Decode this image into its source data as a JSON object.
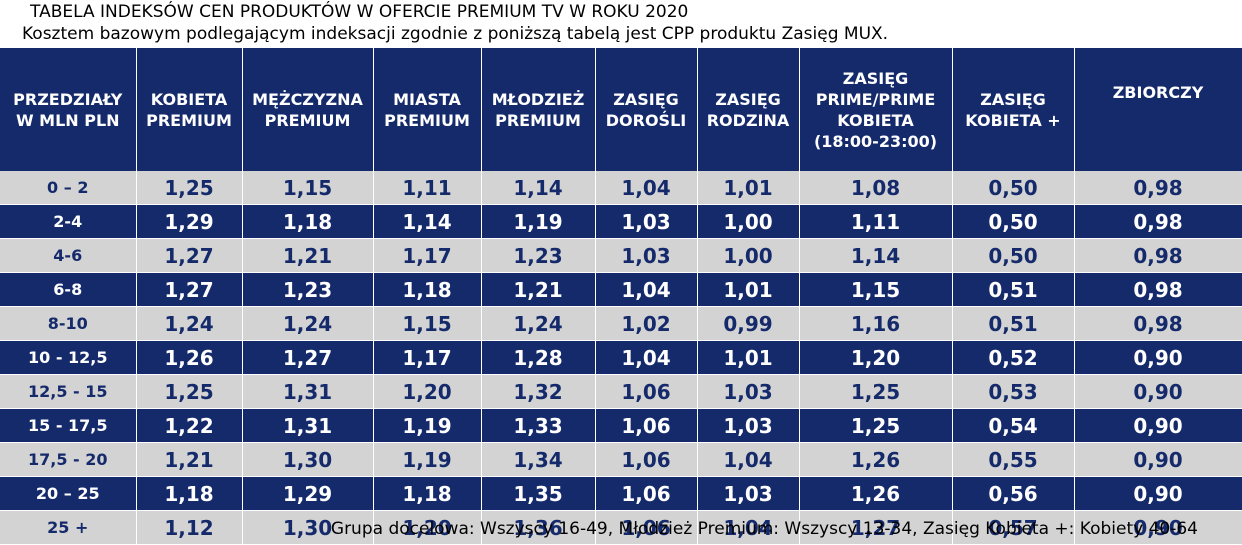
{
  "title": "TABELA INDEKSÓW CEN PRODUKTÓW W OFERCIE PREMIUM TV W ROKU 2020",
  "subtitle": "Kosztem bazowym podlegającym indeksacji zgodnie z poniższą tabelą jest CPP produktu Zasięg MUX.",
  "table": {
    "headers": [
      [
        "PRZEDZIAŁY",
        "W MLN PLN"
      ],
      [
        "KOBIETA",
        "PREMIUM"
      ],
      [
        "MĘŻCZYZNA",
        "PREMIUM"
      ],
      [
        "MIASTA",
        "PREMIUM"
      ],
      [
        "MŁODZIEŻ",
        "PREMIUM"
      ],
      [
        "ZASIĘG",
        "DOROŚLI"
      ],
      [
        "ZASIĘG",
        "RODZINA"
      ],
      [
        "ZASIĘG",
        "PRIME/PRIME",
        "KOBIETA",
        "(18:00-23:00)"
      ],
      [
        "ZASIĘG",
        "KOBIETA +"
      ],
      [
        "ZBIORCZY"
      ]
    ],
    "rows": [
      [
        "0 – 2",
        "1,25",
        "1,15",
        "1,11",
        "1,14",
        "1,04",
        "1,01",
        "1,08",
        "0,50",
        "0,98"
      ],
      [
        "2-4",
        "1,29",
        "1,18",
        "1,14",
        "1,19",
        "1,03",
        "1,00",
        "1,11",
        "0,50",
        "0,98"
      ],
      [
        "4-6",
        "1,27",
        "1,21",
        "1,17",
        "1,23",
        "1,03",
        "1,00",
        "1,14",
        "0,50",
        "0,98"
      ],
      [
        "6-8",
        "1,27",
        "1,23",
        "1,18",
        "1,21",
        "1,04",
        "1,01",
        "1,15",
        "0,51",
        "0,98"
      ],
      [
        "8-10",
        "1,24",
        "1,24",
        "1,15",
        "1,24",
        "1,02",
        "0,99",
        "1,16",
        "0,51",
        "0,98"
      ],
      [
        "10 - 12,5",
        "1,26",
        "1,27",
        "1,17",
        "1,28",
        "1,04",
        "1,01",
        "1,20",
        "0,52",
        "0,90"
      ],
      [
        "12,5 - 15",
        "1,25",
        "1,31",
        "1,20",
        "1,32",
        "1,06",
        "1,03",
        "1,25",
        "0,53",
        "0,90"
      ],
      [
        "15 - 17,5",
        "1,22",
        "1,31",
        "1,19",
        "1,33",
        "1,06",
        "1,03",
        "1,25",
        "0,54",
        "0,90"
      ],
      [
        "17,5 - 20",
        "1,21",
        "1,30",
        "1,19",
        "1,34",
        "1,06",
        "1,04",
        "1,26",
        "0,55",
        "0,90"
      ],
      [
        "20 – 25",
        "1,18",
        "1,29",
        "1,18",
        "1,35",
        "1,06",
        "1,03",
        "1,26",
        "0,56",
        "0,90"
      ],
      [
        "25 +",
        "1,12",
        "1,30",
        "1,20",
        "1,36",
        "1,06",
        "1,04",
        "1,27",
        "0,57",
        "0,90"
      ]
    ]
  },
  "footer": "Grupa docelowa: Wszyscy 16-49, Młodzież Premium: Wszyscy 13-34, Zasięg Kobieta +: Kobiety 40-64",
  "colors": {
    "navy": "#152a6b",
    "light_row": "#d3d3d3",
    "white": "#ffffff"
  }
}
